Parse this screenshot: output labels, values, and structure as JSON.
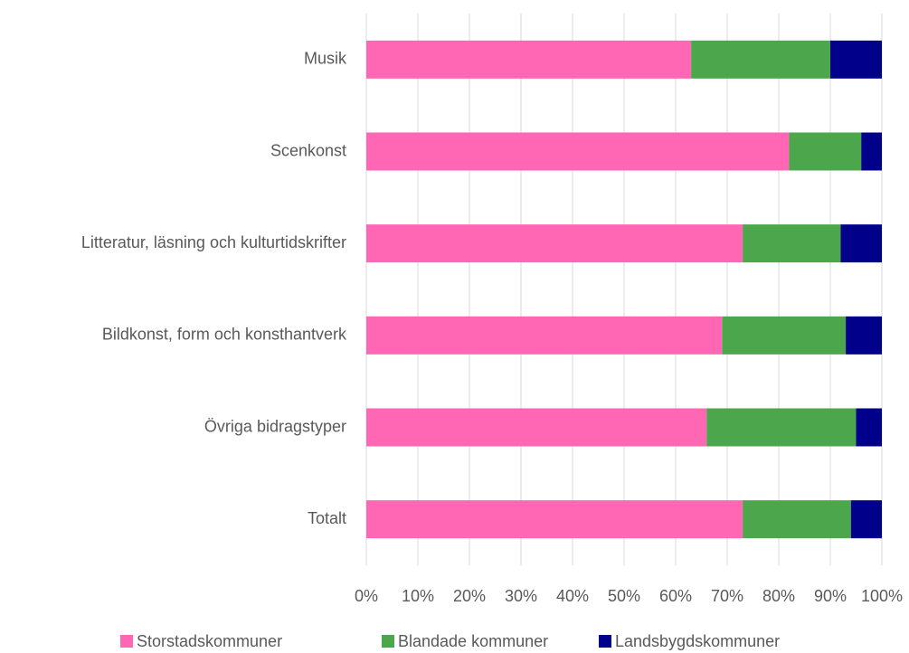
{
  "chart_data": {
    "type": "stacked_bar_horizontal",
    "categories": [
      "Musik",
      "Scenkonst",
      "Litteratur, läsning och kulturtidskrifter",
      "Bildkonst, form och konsthantverk",
      "Övriga bidragstyper",
      "Totalt"
    ],
    "series": [
      {
        "name": "Storstadskommuner",
        "color": "#ff66b3",
        "values": [
          63,
          82,
          73,
          69,
          66,
          73
        ]
      },
      {
        "name": "Blandade kommuner",
        "color": "#4ca64c",
        "values": [
          27,
          14,
          19,
          24,
          29,
          21
        ]
      },
      {
        "name": "Landsbygdskommuner",
        "color": "#00008b",
        "values": [
          10,
          4,
          8,
          7,
          5,
          6
        ]
      }
    ],
    "xlim": [
      0,
      100
    ],
    "xticks": [
      {
        "value": 0,
        "label": "0%"
      },
      {
        "value": 10,
        "label": "10%"
      },
      {
        "value": 20,
        "label": "20%"
      },
      {
        "value": 30,
        "label": "30%"
      },
      {
        "value": 40,
        "label": "40%"
      },
      {
        "value": 50,
        "label": "50%"
      },
      {
        "value": 60,
        "label": "60%"
      },
      {
        "value": 70,
        "label": "70%"
      },
      {
        "value": 80,
        "label": "80%"
      },
      {
        "value": 90,
        "label": "90%"
      },
      {
        "value": 100,
        "label": "100%"
      }
    ],
    "grid": true,
    "legend": "bottom"
  }
}
